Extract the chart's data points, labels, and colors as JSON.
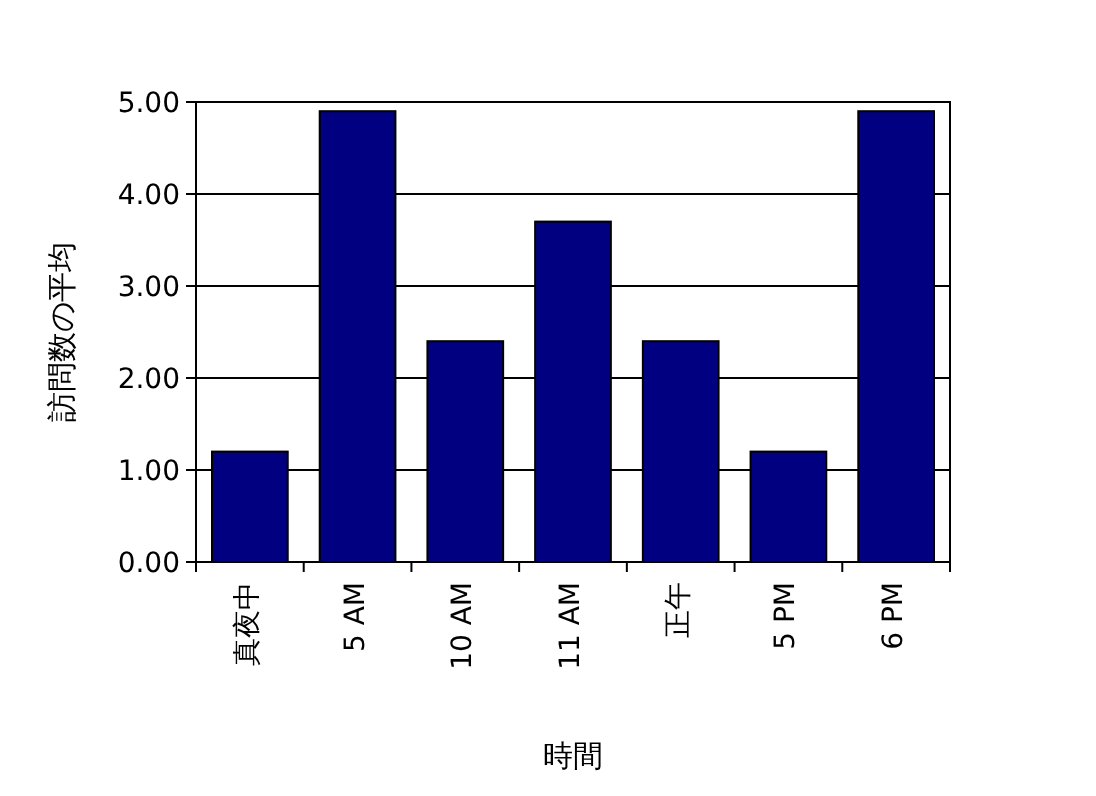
{
  "chart_data": {
    "type": "bar",
    "xlabel": "時間",
    "ylabel": "訪問数の平均",
    "categories": [
      "真夜中",
      "5 AM",
      "10 AM",
      "11 AM",
      "正午",
      "5 PM",
      "6 PM"
    ],
    "values": [
      1.2,
      4.9,
      2.4,
      3.7,
      2.4,
      1.2,
      4.9
    ],
    "color": "#000080",
    "ylim": [
      0,
      5
    ],
    "yticks": [
      {
        "value": 0,
        "label": "0.00"
      },
      {
        "value": 1,
        "label": "1.00"
      },
      {
        "value": 2,
        "label": "2.00"
      },
      {
        "value": 3,
        "label": "3.00"
      },
      {
        "value": 4,
        "label": "4.00"
      },
      {
        "value": 5,
        "label": "5.00"
      }
    ],
    "grid": "y"
  }
}
